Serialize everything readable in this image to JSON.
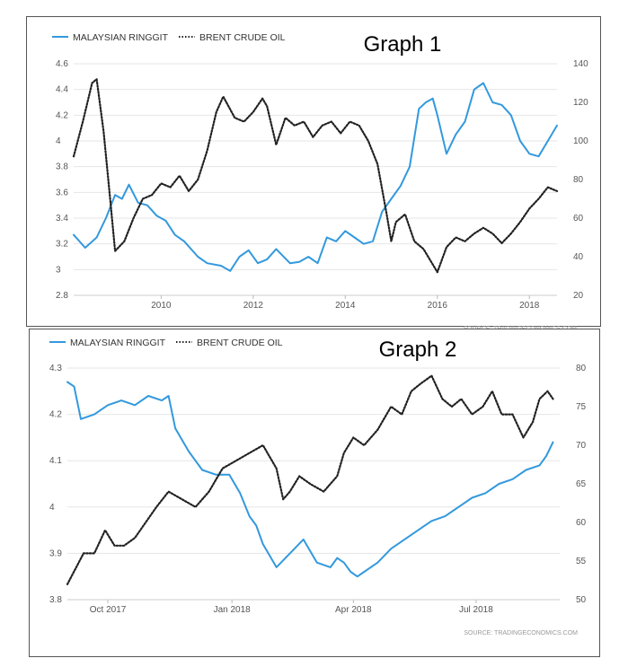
{
  "chart_data": [
    {
      "type": "line",
      "title": "Graph 1",
      "source": "SOURCE: TRADINGECONOMICS.COM",
      "x_range": [
        2008.1,
        2018.6
      ],
      "x_ticks": [
        "2010",
        "2012",
        "2014",
        "2016",
        "2018"
      ],
      "x_tick_values": [
        2010,
        2012,
        2014,
        2016,
        2018
      ],
      "y_left": {
        "ylim": [
          2.8,
          4.6
        ],
        "ticks": [
          "2.8",
          "3",
          "3.2",
          "3.4",
          "3.6",
          "3.8",
          "4",
          "4.2",
          "4.4",
          "4.6"
        ]
      },
      "y_right": {
        "ylim": [
          20,
          140
        ],
        "ticks": [
          "20",
          "40",
          "60",
          "80",
          "100",
          "120",
          "140"
        ]
      },
      "legend_position": "top-left",
      "series": [
        {
          "name": "MALAYSIAN RINGGIT",
          "axis": "left",
          "color": "#3399dd",
          "style": "solid",
          "x": [
            2008.1,
            2008.35,
            2008.6,
            2008.8,
            2009.0,
            2009.15,
            2009.3,
            2009.5,
            2009.7,
            2009.9,
            2010.1,
            2010.3,
            2010.5,
            2010.8,
            2011.0,
            2011.3,
            2011.5,
            2011.7,
            2011.9,
            2012.1,
            2012.3,
            2012.5,
            2012.8,
            2013.0,
            2013.2,
            2013.4,
            2013.6,
            2013.8,
            2014.0,
            2014.2,
            2014.4,
            2014.6,
            2014.8,
            2015.0,
            2015.2,
            2015.4,
            2015.6,
            2015.75,
            2015.9,
            2016.0,
            2016.2,
            2016.4,
            2016.6,
            2016.8,
            2017.0,
            2017.2,
            2017.4,
            2017.6,
            2017.8,
            2018.0,
            2018.2,
            2018.4,
            2018.6
          ],
          "values": [
            3.27,
            3.17,
            3.25,
            3.4,
            3.58,
            3.55,
            3.66,
            3.52,
            3.5,
            3.42,
            3.38,
            3.27,
            3.22,
            3.1,
            3.05,
            3.03,
            2.99,
            3.1,
            3.15,
            3.05,
            3.08,
            3.16,
            3.05,
            3.06,
            3.1,
            3.05,
            3.25,
            3.22,
            3.3,
            3.25,
            3.2,
            3.22,
            3.45,
            3.55,
            3.65,
            3.8,
            4.25,
            4.3,
            4.33,
            4.2,
            3.9,
            4.05,
            4.15,
            4.4,
            4.45,
            4.3,
            4.28,
            4.2,
            4.0,
            3.9,
            3.88,
            4.0,
            4.12
          ]
        },
        {
          "name": "BRENT CRUDE OIL",
          "axis": "right",
          "color": "#222222",
          "style": "dotted",
          "x": [
            2008.1,
            2008.3,
            2008.5,
            2008.6,
            2008.75,
            2008.9,
            2009.0,
            2009.2,
            2009.4,
            2009.6,
            2009.8,
            2010.0,
            2010.2,
            2010.4,
            2010.6,
            2010.8,
            2011.0,
            2011.2,
            2011.35,
            2011.6,
            2011.8,
            2012.0,
            2012.2,
            2012.3,
            2012.5,
            2012.7,
            2012.9,
            2013.1,
            2013.3,
            2013.5,
            2013.7,
            2013.9,
            2014.1,
            2014.3,
            2014.5,
            2014.7,
            2014.9,
            2015.0,
            2015.1,
            2015.3,
            2015.5,
            2015.7,
            2015.9,
            2016.0,
            2016.2,
            2016.4,
            2016.6,
            2016.8,
            2017.0,
            2017.2,
            2017.4,
            2017.6,
            2017.8,
            2018.0,
            2018.2,
            2018.4,
            2018.6
          ],
          "values": [
            92,
            110,
            130,
            132,
            105,
            68,
            43,
            48,
            60,
            70,
            72,
            78,
            76,
            82,
            74,
            80,
            95,
            115,
            123,
            112,
            110,
            115,
            122,
            118,
            98,
            112,
            108,
            110,
            102,
            108,
            110,
            104,
            110,
            108,
            100,
            88,
            62,
            48,
            58,
            62,
            48,
            44,
            36,
            32,
            45,
            50,
            48,
            52,
            55,
            52,
            47,
            52,
            58,
            65,
            70,
            76,
            74
          ]
        }
      ]
    },
    {
      "type": "line",
      "title": "Graph 2",
      "source": "SOURCE: TRADINGECONOMICS.COM",
      "x_range": [
        0,
        365
      ],
      "x_ticks": [
        "Oct 2017",
        "Jan 2018",
        "Apr 2018",
        "Jul 2018"
      ],
      "x_tick_values": [
        30,
        122,
        212,
        303
      ],
      "y_left": {
        "ylim": [
          3.8,
          4.3
        ],
        "ticks": [
          "3.8",
          "3.9",
          "4",
          "4.1",
          "4.2",
          "4.3"
        ]
      },
      "y_right": {
        "ylim": [
          50,
          80
        ],
        "ticks": [
          "50",
          "55",
          "60",
          "65",
          "70",
          "75",
          "80"
        ]
      },
      "legend_position": "top-left",
      "series": [
        {
          "name": "MALAYSIAN RINGGIT",
          "axis": "left",
          "color": "#3399dd",
          "style": "solid",
          "x": [
            0,
            5,
            10,
            20,
            30,
            40,
            50,
            60,
            70,
            75,
            80,
            90,
            100,
            110,
            120,
            128,
            135,
            140,
            145,
            155,
            165,
            175,
            185,
            195,
            200,
            205,
            210,
            215,
            220,
            230,
            240,
            250,
            260,
            270,
            280,
            290,
            300,
            310,
            320,
            330,
            340,
            350,
            355,
            360
          ],
          "values": [
            4.27,
            4.26,
            4.19,
            4.2,
            4.22,
            4.23,
            4.22,
            4.24,
            4.23,
            4.24,
            4.17,
            4.12,
            4.08,
            4.07,
            4.07,
            4.03,
            3.98,
            3.96,
            3.92,
            3.87,
            3.9,
            3.93,
            3.88,
            3.87,
            3.89,
            3.88,
            3.86,
            3.85,
            3.86,
            3.88,
            3.91,
            3.93,
            3.95,
            3.97,
            3.98,
            4.0,
            4.02,
            4.03,
            4.05,
            4.06,
            4.08,
            4.09,
            4.11,
            4.14
          ]
        },
        {
          "name": "BRENT CRUDE OIL",
          "axis": "right",
          "color": "#222222",
          "style": "dotted",
          "x": [
            0,
            6,
            12,
            20,
            28,
            35,
            42,
            50,
            58,
            66,
            75,
            85,
            95,
            105,
            115,
            125,
            135,
            145,
            155,
            160,
            165,
            172,
            180,
            190,
            200,
            205,
            212,
            220,
            230,
            240,
            248,
            255,
            262,
            270,
            278,
            285,
            292,
            300,
            308,
            315,
            322,
            330,
            338,
            345,
            350,
            356,
            360
          ],
          "values": [
            52,
            54,
            56,
            56,
            59,
            57,
            57,
            58,
            60,
            62,
            64,
            63,
            62,
            64,
            67,
            68,
            69,
            70,
            67,
            63,
            64,
            66,
            65,
            64,
            66,
            69,
            71,
            70,
            72,
            75,
            74,
            77,
            78,
            79,
            76,
            75,
            76,
            74,
            75,
            77,
            74,
            74,
            71,
            73,
            76,
            77,
            76
          ]
        }
      ]
    }
  ]
}
